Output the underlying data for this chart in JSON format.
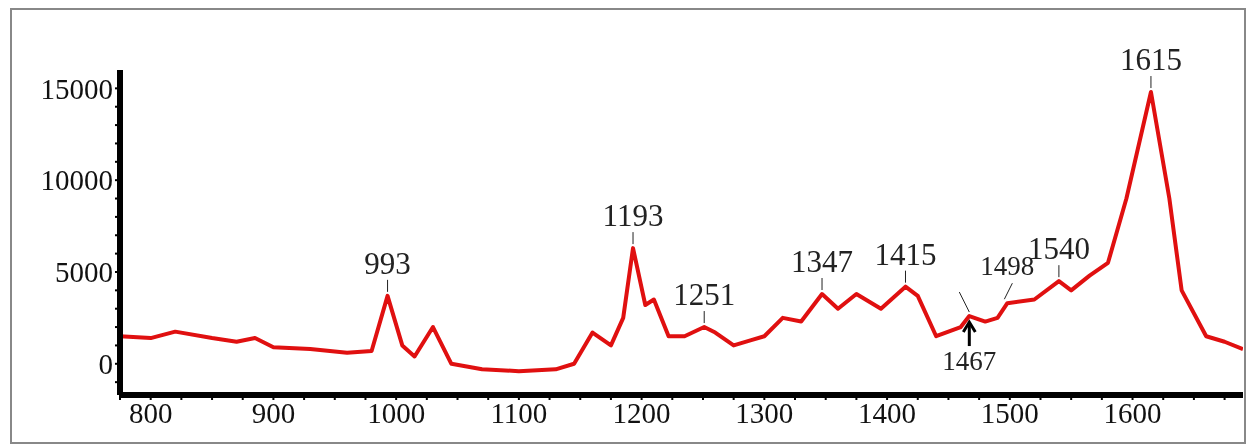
{
  "chart_data": {
    "type": "line",
    "x": [
      775,
      800,
      820,
      850,
      870,
      885,
      900,
      930,
      960,
      980,
      993,
      1005,
      1015,
      1030,
      1045,
      1070,
      1100,
      1130,
      1145,
      1160,
      1175,
      1185,
      1193,
      1203,
      1210,
      1222,
      1235,
      1251,
      1260,
      1275,
      1290,
      1300,
      1315,
      1330,
      1347,
      1360,
      1375,
      1395,
      1415,
      1425,
      1440,
      1460,
      1467,
      1480,
      1490,
      1498,
      1520,
      1540,
      1550,
      1565,
      1580,
      1595,
      1615,
      1630,
      1640,
      1660,
      1675,
      1690
    ],
    "series": [
      {
        "color": "#e01010",
        "values": [
          1500,
          1400,
          1750,
          1400,
          1200,
          1400,
          900,
          800,
          600,
          700,
          3700,
          1000,
          400,
          2000,
          0,
          -300,
          -400,
          -300,
          0,
          1700,
          1000,
          2500,
          6300,
          3200,
          3500,
          1500,
          1500,
          2000,
          1700,
          1000,
          1300,
          1500,
          2500,
          2300,
          3800,
          3000,
          3800,
          3000,
          4200,
          3700,
          1500,
          2000,
          2600,
          2300,
          2500,
          3300,
          3500,
          4500,
          4000,
          4800,
          5500,
          9000,
          14800,
          9000,
          4000,
          1500,
          1200,
          800
        ]
      }
    ],
    "xlim": [
      775,
      1690
    ],
    "xticks": [
      {
        "value": 775,
        "label": null
      },
      800,
      {
        "value": 825,
        "label": null
      },
      {
        "value": 850,
        "label": null
      },
      {
        "value": 875,
        "label": null
      },
      900,
      {
        "value": 925,
        "label": null
      },
      {
        "value": 950,
        "label": null
      },
      {
        "value": 975,
        "label": null
      },
      1000,
      {
        "value": 1025,
        "label": null
      },
      {
        "value": 1050,
        "label": null
      },
      {
        "value": 1075,
        "label": null
      },
      1100,
      {
        "value": 1125,
        "label": null
      },
      {
        "value": 1150,
        "label": null
      },
      {
        "value": 1175,
        "label": null
      },
      1200,
      {
        "value": 1225,
        "label": null
      },
      {
        "value": 1250,
        "label": null
      },
      {
        "value": 1275,
        "label": null
      },
      1300,
      {
        "value": 1325,
        "label": null
      },
      {
        "value": 1350,
        "label": null
      },
      {
        "value": 1375,
        "label": null
      },
      1400,
      {
        "value": 1425,
        "label": null
      },
      {
        "value": 1450,
        "label": null
      },
      {
        "value": 1475,
        "label": null
      },
      1500,
      {
        "value": 1525,
        "label": null
      },
      {
        "value": 1550,
        "label": null
      },
      {
        "value": 1575,
        "label": null
      },
      1600,
      {
        "value": 1625,
        "label": null
      },
      {
        "value": 1650,
        "label": null
      },
      {
        "value": 1675,
        "label": null
      }
    ],
    "ylim": [
      -1700,
      16000
    ],
    "yticks": [
      {
        "value": -1000,
        "label": null
      },
      0,
      {
        "value": 1000,
        "label": null
      },
      {
        "value": 2000,
        "label": null
      },
      {
        "value": 3000,
        "label": null
      },
      {
        "value": 4000,
        "label": null
      },
      5000,
      {
        "value": 6000,
        "label": null
      },
      {
        "value": 7000,
        "label": null
      },
      {
        "value": 8000,
        "label": null
      },
      {
        "value": 9000,
        "label": null
      },
      10000,
      {
        "value": 11000,
        "label": null
      },
      {
        "value": 12000,
        "label": null
      },
      {
        "value": 13000,
        "label": null
      },
      {
        "value": 14000,
        "label": null
      },
      15000
    ],
    "grid": false,
    "legend": false,
    "marker": "none",
    "line_style": "solid",
    "annotations": [
      {
        "text": "993",
        "x": 993,
        "y": 3700
      },
      {
        "text": "1193",
        "x": 1193,
        "y": 6300
      },
      {
        "text": "1251",
        "x": 1251,
        "y": 2000
      },
      {
        "text": "1347",
        "x": 1347,
        "y": 3800
      },
      {
        "text": "1415",
        "x": 1415,
        "y": 4200
      },
      {
        "text": "1467",
        "x": 1467,
        "y": 2600
      },
      {
        "text": "1498",
        "x": 1498,
        "y": 3300
      },
      {
        "text": "1540",
        "x": 1540,
        "y": 4500
      },
      {
        "text": "1615",
        "x": 1615,
        "y": 14800
      }
    ]
  }
}
